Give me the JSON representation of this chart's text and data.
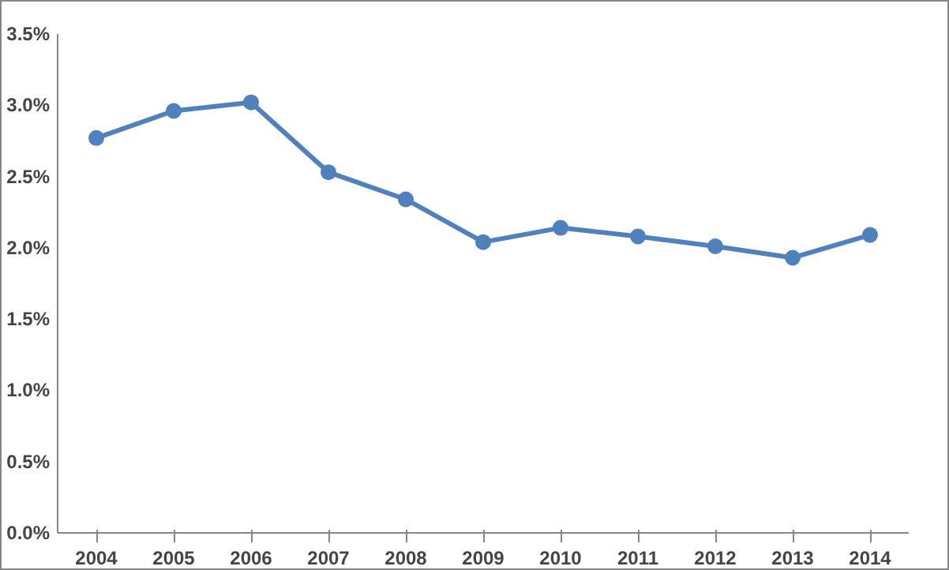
{
  "chart_data": {
    "type": "line",
    "categories": [
      "2004",
      "2005",
      "2006",
      "2007",
      "2008",
      "2009",
      "2010",
      "2011",
      "2012",
      "2013",
      "2014"
    ],
    "series": [
      {
        "color": "#4f81bd",
        "values": [
          2.77,
          2.96,
          3.02,
          2.53,
          2.34,
          2.04,
          2.14,
          2.08,
          2.01,
          1.93,
          2.09
        ]
      }
    ],
    "ylim": [
      0,
      3.5
    ],
    "yticks": [
      {
        "value": 0,
        "label": "0.0%"
      },
      {
        "value": 0.5,
        "label": "0.5%"
      },
      {
        "value": 1,
        "label": "1.0%"
      },
      {
        "value": 1.5,
        "label": "1.5%"
      },
      {
        "value": 2,
        "label": "2.0%"
      },
      {
        "value": 2.5,
        "label": "2.5%"
      },
      {
        "value": 3,
        "label": "3.0%"
      },
      {
        "value": 3.5,
        "label": "3.5%"
      }
    ],
    "marker": "circle",
    "line_style": "solid"
  }
}
